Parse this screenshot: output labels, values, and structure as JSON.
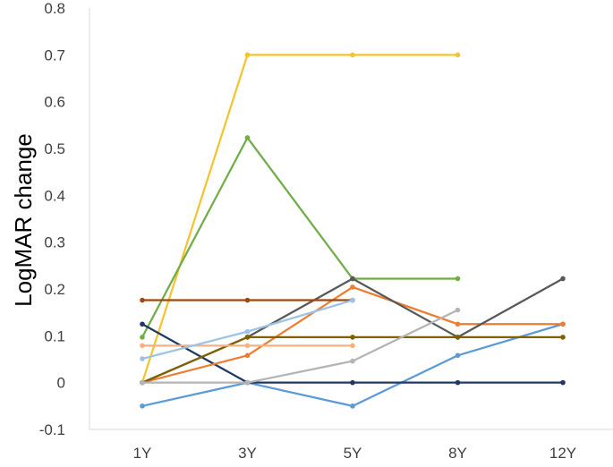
{
  "chart_data": {
    "type": "line",
    "title": "",
    "xlabel": "",
    "ylabel": "LogMAR change",
    "categories": [
      "1Y",
      "3Y",
      "5Y",
      "8Y",
      "12Y"
    ],
    "ylim": [
      -0.1,
      0.8
    ],
    "yticks": [
      "-0.1",
      "0",
      "0.1",
      "0.2",
      "0.3",
      "0.4",
      "0.5",
      "0.6",
      "0.7",
      "0.8"
    ],
    "grid": false,
    "legend": "none",
    "series": [
      {
        "color": "#F4C430",
        "values": [
          0.0,
          0.7,
          0.7,
          0.7,
          null
        ]
      },
      {
        "color": "#70AD47",
        "values": [
          0.097,
          0.523,
          0.222,
          0.222,
          null
        ]
      },
      {
        "color": "#5B9BD5",
        "values": [
          -0.05,
          0.0,
          -0.05,
          0.058,
          0.125
        ]
      },
      {
        "color": "#203864",
        "values": [
          0.125,
          0.0,
          0.0,
          0.0,
          0.0
        ]
      },
      {
        "color": "#ED7D31",
        "values": [
          0.0,
          0.058,
          0.204,
          0.125,
          0.125
        ]
      },
      {
        "color": "#595959",
        "values": [
          0.0,
          0.097,
          0.222,
          0.097,
          0.222
        ]
      },
      {
        "color": "#806000",
        "values": [
          0.0,
          0.097,
          0.097,
          0.097,
          0.097
        ]
      },
      {
        "color": "#9E480E",
        "values": [
          0.176,
          0.176,
          0.176,
          null,
          null
        ]
      },
      {
        "color": "#F4B183",
        "values": [
          0.079,
          0.079,
          0.079,
          null,
          null
        ]
      },
      {
        "color": "#9DC3E6",
        "values": [
          0.051,
          0.109,
          0.176,
          null,
          null
        ]
      },
      {
        "color": "#B4B4B4",
        "values": [
          0.0,
          0.0,
          0.046,
          0.155,
          null
        ]
      }
    ]
  }
}
